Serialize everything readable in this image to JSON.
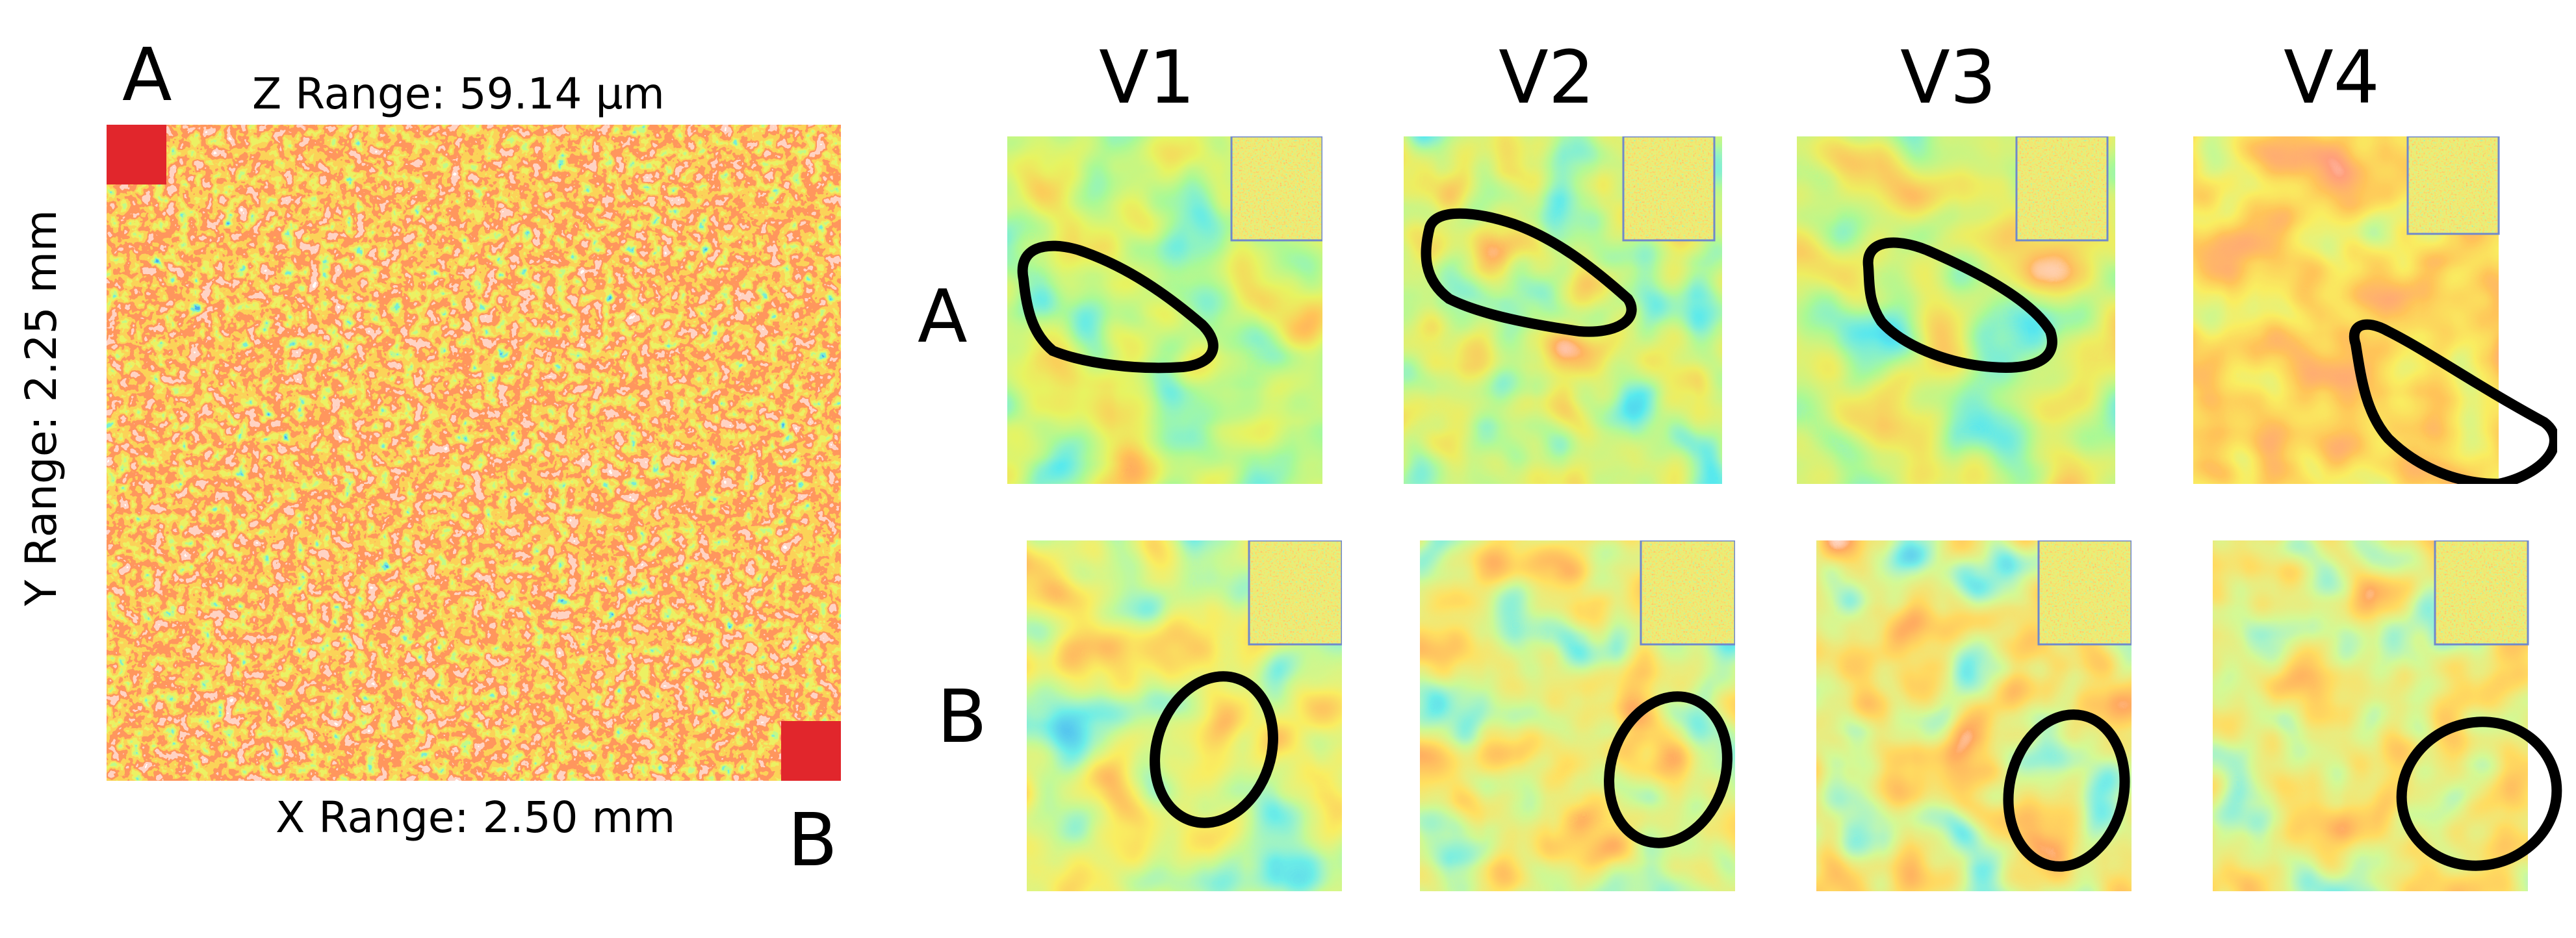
{
  "overview": {
    "corner_labels": {
      "a": "A",
      "b": "B"
    },
    "z_range": "Z Range: 59.14 μm",
    "y_range": "Y Range: 2.25 mm",
    "x_range": "X Range: 2.50 mm",
    "marker_color": "#e1262c"
  },
  "grid": {
    "columns": [
      "V1",
      "V2",
      "V3",
      "V4"
    ],
    "rows": [
      "A",
      "B"
    ]
  },
  "palette": {
    "low": "#050c5a",
    "mid_low": "#1b6fe0",
    "mid": "#19c2dc",
    "mid_high": "#b9f23a",
    "high": "#ffd21e",
    "peak": "#f24424",
    "max": "#ffffff"
  },
  "annotation_color": "#000000"
}
